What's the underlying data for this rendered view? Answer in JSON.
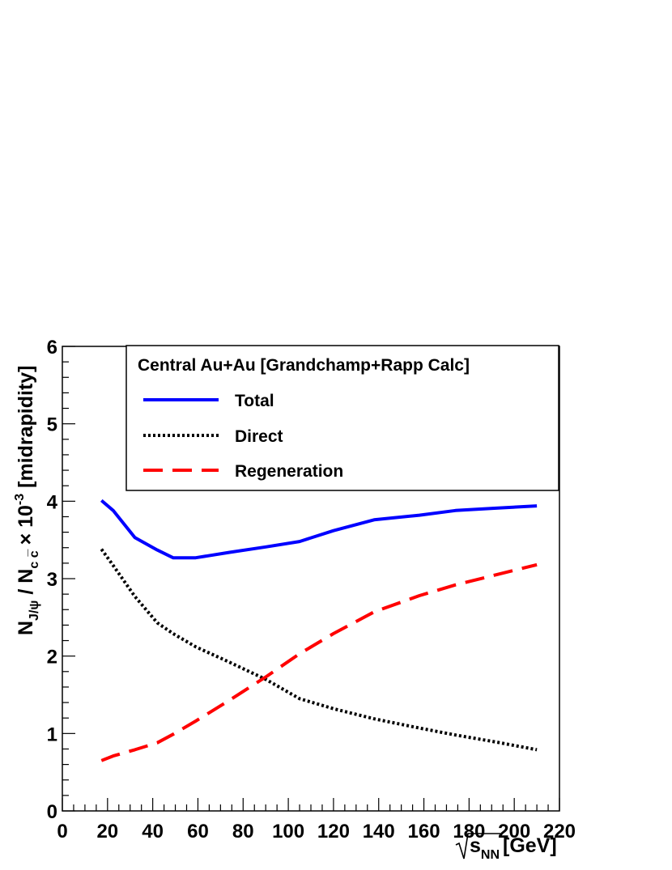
{
  "chart_data": {
    "type": "line",
    "legend_title": "Central Au+Au [Grandchamp+Rapp Calc]",
    "legend_position": "top",
    "xlim": [
      0,
      220
    ],
    "ylim": [
      0,
      6
    ],
    "x_ticks": [
      "0",
      "20",
      "40",
      "60",
      "80",
      "100",
      "120",
      "140",
      "160",
      "180",
      "200",
      "220"
    ],
    "y_ticks": [
      "0",
      "1",
      "2",
      "3",
      "4",
      "5",
      "6"
    ],
    "xlabel": {
      "main": "s",
      "sub": "NN",
      "unit": "[GeV]"
    },
    "ylabel": {
      "n1": "N",
      "n1_sub": "J/ψ",
      "slash": " / ",
      "n2": "N",
      "n2_sub": "c c̅",
      "times": " × 10",
      "exp": "-3",
      "tail": " [midrapidity]"
    },
    "series": [
      {
        "name": "Total",
        "color": "#0000ff",
        "style": "solid",
        "x": [
          17.3,
          22.5,
          32.1,
          42,
          49,
          59,
          74,
          90,
          105,
          120,
          138,
          158,
          174,
          192,
          210
        ],
        "y": [
          4.01,
          3.88,
          3.53,
          3.37,
          3.27,
          3.27,
          3.34,
          3.41,
          3.48,
          3.62,
          3.76,
          3.82,
          3.88,
          3.91,
          3.94
        ]
      },
      {
        "name": "Direct",
        "color": "#000000",
        "style": "dotted",
        "x": [
          17.3,
          22.5,
          32.1,
          42,
          49,
          59,
          74,
          90,
          105,
          120,
          138,
          158,
          174,
          192,
          210
        ],
        "y": [
          3.38,
          3.17,
          2.77,
          2.43,
          2.29,
          2.12,
          1.92,
          1.7,
          1.45,
          1.32,
          1.19,
          1.07,
          0.98,
          0.89,
          0.79
        ]
      },
      {
        "name": "Regeneration",
        "color": "#ff0000",
        "style": "dashed",
        "x": [
          17.3,
          22.5,
          32.1,
          42,
          49,
          59,
          74,
          90,
          105,
          120,
          138,
          158,
          174,
          192,
          210
        ],
        "y": [
          0.65,
          0.71,
          0.79,
          0.88,
          0.99,
          1.16,
          1.43,
          1.73,
          2.03,
          2.29,
          2.57,
          2.78,
          2.92,
          3.05,
          3.18
        ]
      }
    ]
  }
}
